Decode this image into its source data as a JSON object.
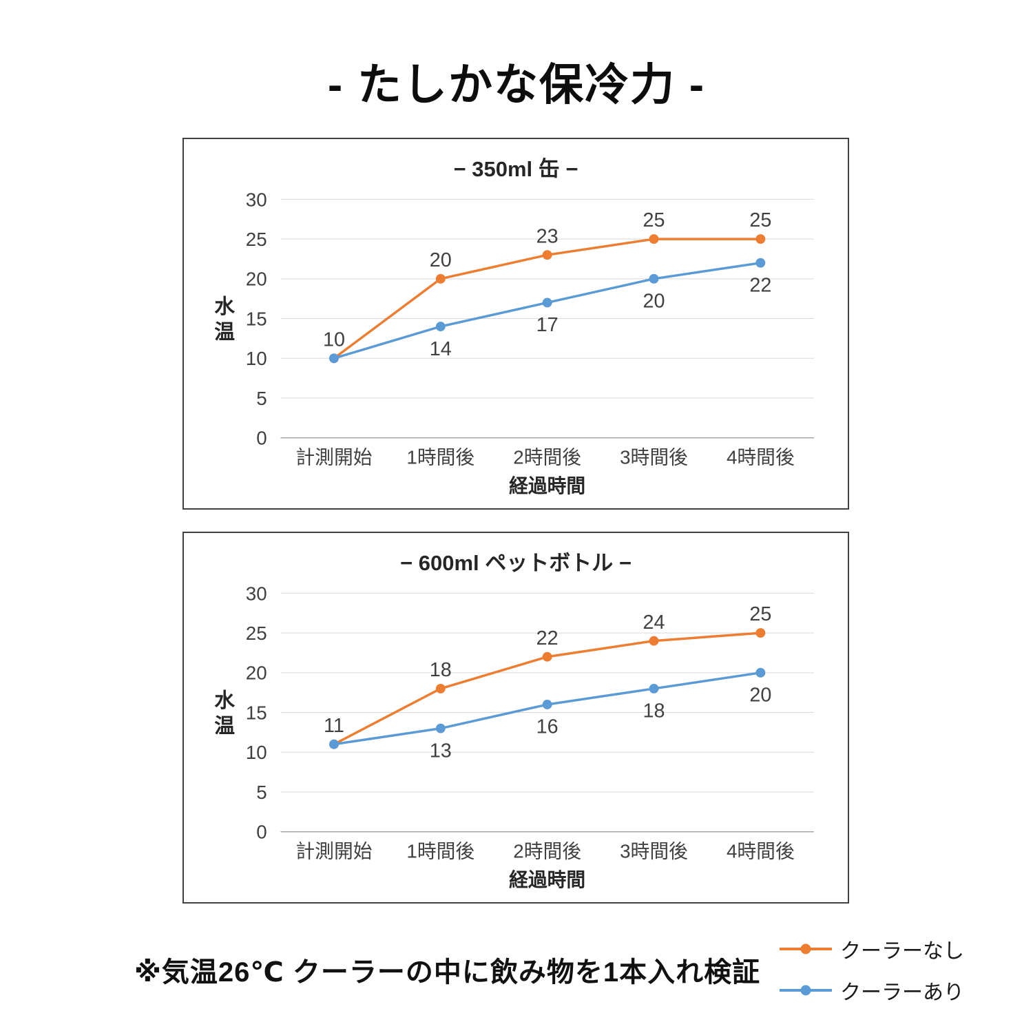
{
  "page": {
    "title": "- たしかな保冷力 -",
    "footnote": "※気温26℃ クーラーの中に飲み物を1本入れ検証"
  },
  "legend": [
    {
      "label": "クーラーなし",
      "color": "#ED7D31"
    },
    {
      "label": "クーラーあり",
      "color": "#5B9BD5"
    }
  ],
  "chart_data": [
    {
      "type": "line",
      "title": "− 350ml 缶 −",
      "categories": [
        "計測開始",
        "1時間後",
        "2時間後",
        "3時間後",
        "4時間後"
      ],
      "series": [
        {
          "name": "クーラーなし",
          "color": "#ED7D31",
          "values": [
            10,
            20,
            23,
            25,
            25
          ]
        },
        {
          "name": "クーラーあり",
          "color": "#5B9BD5",
          "values": [
            10,
            14,
            17,
            20,
            22
          ]
        }
      ],
      "xlabel": "経過時間",
      "ylabel": "水温",
      "ylim": [
        0,
        30
      ],
      "yticks": [
        0,
        5,
        10,
        15,
        20,
        25,
        30
      ],
      "grid": true,
      "legend_position": "none"
    },
    {
      "type": "line",
      "title": "− 600ml ペットボトル −",
      "categories": [
        "計測開始",
        "1時間後",
        "2時間後",
        "3時間後",
        "4時間後"
      ],
      "series": [
        {
          "name": "クーラーなし",
          "color": "#ED7D31",
          "values": [
            11,
            18,
            22,
            24,
            25
          ]
        },
        {
          "name": "クーラーあり",
          "color": "#5B9BD5",
          "values": [
            11,
            13,
            16,
            18,
            20
          ]
        }
      ],
      "xlabel": "経過時間",
      "ylabel": "水温",
      "ylim": [
        0,
        30
      ],
      "yticks": [
        0,
        5,
        10,
        15,
        20,
        25,
        30
      ],
      "grid": true,
      "legend_position": "none"
    }
  ]
}
